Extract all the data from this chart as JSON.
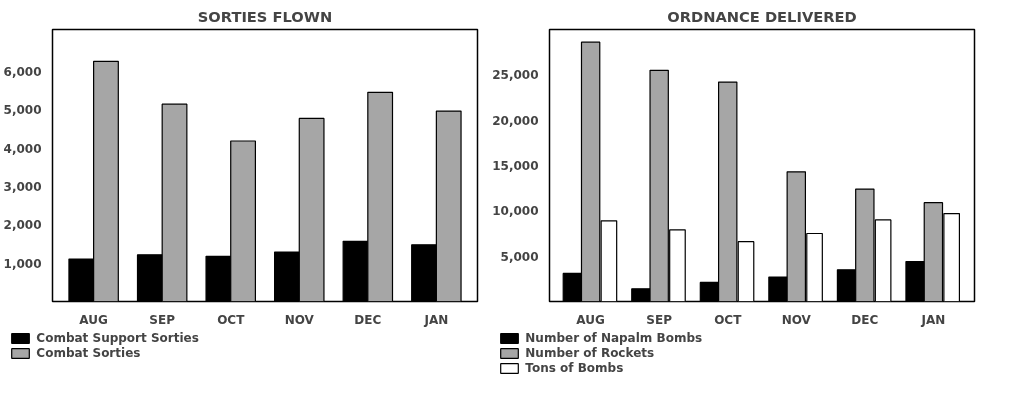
{
  "chart_data": [
    {
      "type": "bar",
      "title": "SORTIES FLOWN",
      "categories": [
        "AUG",
        "SEP",
        "OCT",
        "NOV",
        "DEC",
        "JAN"
      ],
      "series": [
        {
          "name": "Combat Support Sorties",
          "color": "#000000",
          "values": [
            1110,
            1220,
            1180,
            1290,
            1570,
            1480
          ]
        },
        {
          "name": "Combat Sorties",
          "color": "#a6a6a6",
          "values": [
            6270,
            5150,
            4190,
            4780,
            5460,
            4970
          ]
        }
      ],
      "ylim": [
        0,
        7100
      ],
      "yticks": [
        {
          "value": 1000,
          "label": "1,000"
        },
        {
          "value": 2000,
          "label": "2,000"
        },
        {
          "value": 3000,
          "label": "3,000"
        },
        {
          "value": 4000,
          "label": "4,000"
        },
        {
          "value": 5000,
          "label": "5,000"
        },
        {
          "value": 6000,
          "label": "6,000"
        }
      ],
      "grid": false,
      "legend": "bottom left"
    },
    {
      "type": "bar",
      "title": "ORDNANCE DELIVERED",
      "categories": [
        "AUG",
        "SEP",
        "OCT",
        "NOV",
        "DEC",
        "JAN"
      ],
      "series": [
        {
          "name": "Number of Napalm Bombs",
          "color": "#000000",
          "values": [
            3100,
            1400,
            2100,
            2700,
            3500,
            4400
          ]
        },
        {
          "name": "Number of Rockets",
          "color": "#a6a6a6",
          "values": [
            28600,
            25500,
            24200,
            14300,
            12400,
            10900
          ]
        },
        {
          "name": "Tons of Bombs",
          "color": "#ffffff",
          "values": [
            8900,
            7900,
            6600,
            7500,
            9000,
            9700
          ]
        }
      ],
      "ylim": [
        0,
        30000
      ],
      "yticks": [
        {
          "value": 5000,
          "label": "5,000"
        },
        {
          "value": 10000,
          "label": "10,000"
        },
        {
          "value": 15000,
          "label": "15,000"
        },
        {
          "value": 20000,
          "label": "20,000"
        },
        {
          "value": 25000,
          "label": "25,000"
        }
      ],
      "grid": false,
      "legend": "bottom left"
    }
  ]
}
